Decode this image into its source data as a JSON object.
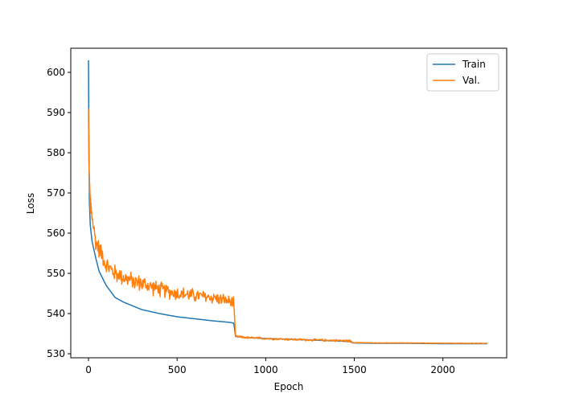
{
  "chart_data": {
    "type": "line",
    "title": "",
    "xlabel": "Epoch",
    "ylabel": "Loss",
    "xlim": [
      -100,
      2360
    ],
    "ylim": [
      529,
      606
    ],
    "xticks": [
      0,
      500,
      1000,
      1500,
      2000
    ],
    "yticks": [
      530,
      540,
      550,
      560,
      570,
      580,
      590,
      600
    ],
    "legend": {
      "position": "top-right"
    },
    "grid": false,
    "series": [
      {
        "name": "Train",
        "color": "#1f77b4",
        "x": [
          0,
          2,
          5,
          10,
          20,
          40,
          60,
          100,
          150,
          200,
          300,
          400,
          500,
          600,
          700,
          800,
          820,
          830,
          900,
          1000,
          1200,
          1400,
          1480,
          1490,
          1600,
          1800,
          2000,
          2250
        ],
        "y": [
          603,
          585,
          568,
          562,
          558,
          554,
          550.5,
          547,
          544,
          542.8,
          541,
          540,
          539.2,
          538.7,
          538.2,
          537.8,
          537.6,
          534.3,
          534,
          533.8,
          533.5,
          533.2,
          533,
          532.7,
          532.6,
          532.6,
          532.5,
          532.5
        ]
      },
      {
        "name": "Val.",
        "color": "#ff7f0e",
        "x": [
          0,
          2,
          5,
          10,
          20,
          30,
          40,
          60,
          80,
          100,
          150,
          200,
          250,
          300,
          400,
          500,
          600,
          700,
          800,
          820,
          830,
          900,
          1000,
          1200,
          1400,
          1480,
          1490,
          1600,
          1800,
          2000,
          2250
        ],
        "y": [
          591,
          578,
          574,
          567,
          564,
          561,
          558,
          556,
          554.5,
          552,
          550,
          549,
          548,
          547.5,
          546,
          545,
          544.5,
          544,
          543,
          542.5,
          534.3,
          534,
          533.8,
          533.5,
          533.3,
          533.2,
          532.8,
          532.7,
          532.7,
          532.6,
          532.6
        ]
      }
    ]
  }
}
